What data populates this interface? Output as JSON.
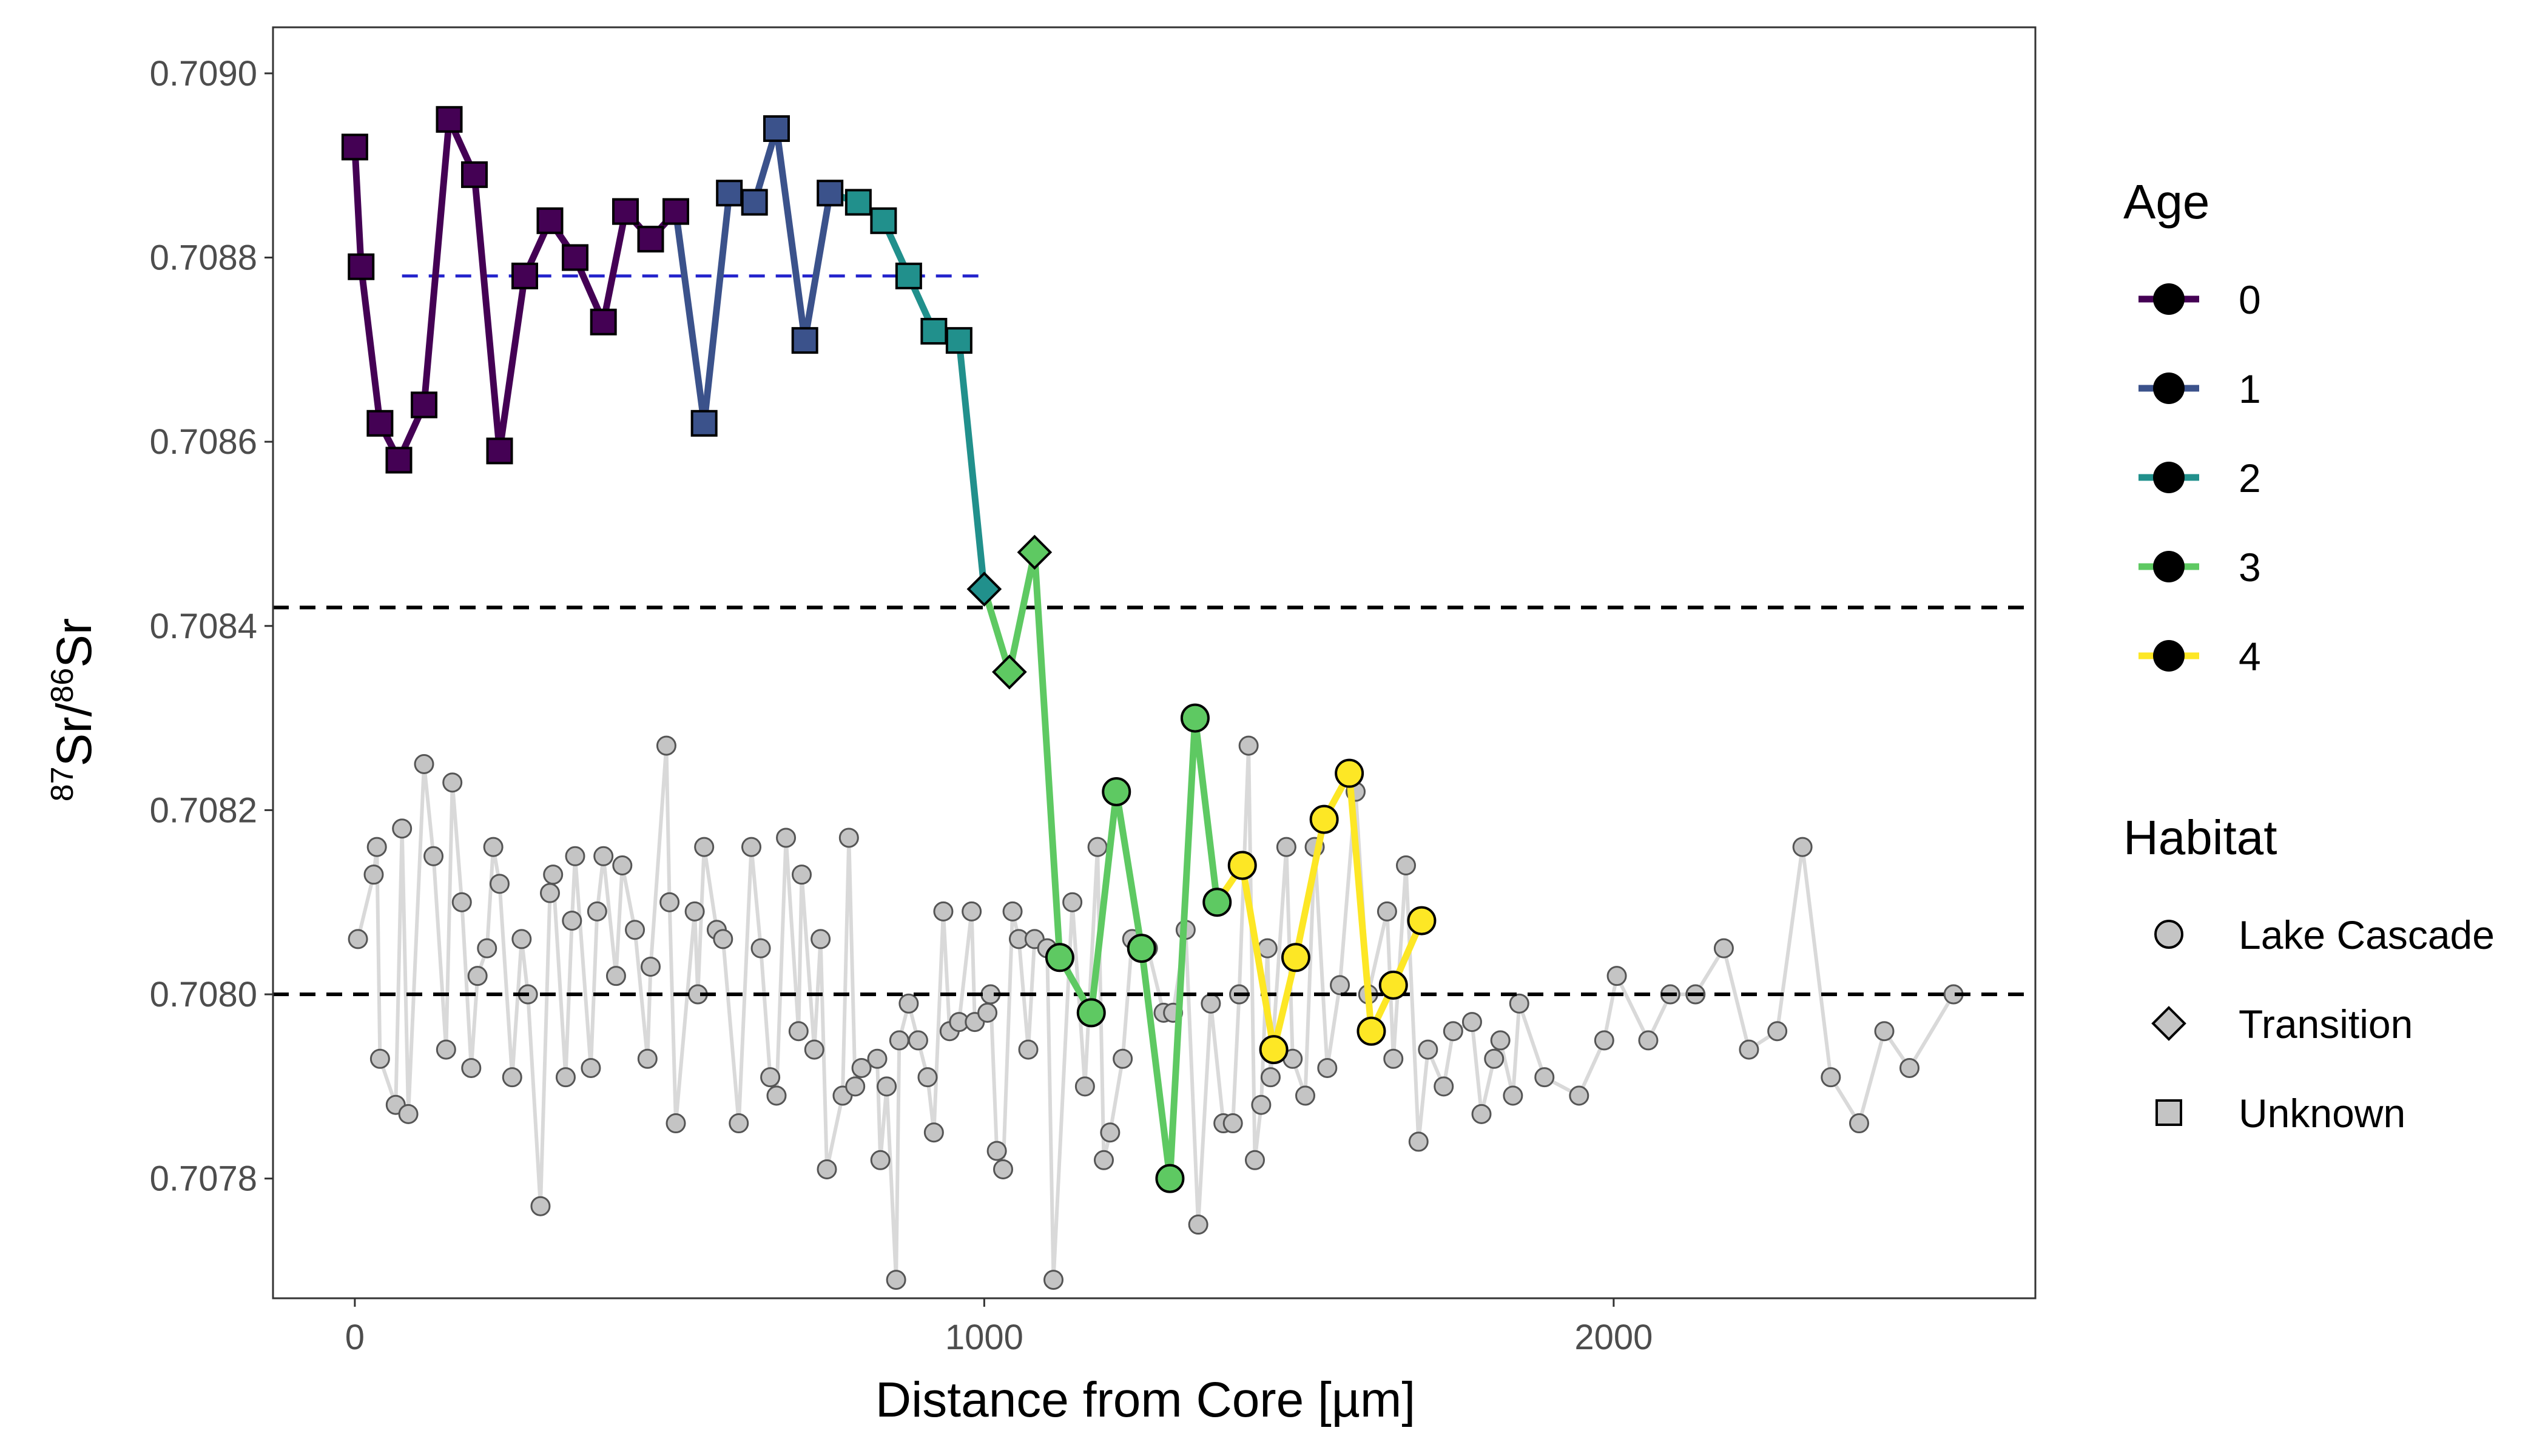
{
  "chart_data": {
    "type": "line",
    "xlabel": "Distance from Core [µm]",
    "ylabel_parts": {
      "sup1": "87",
      "base1": "Sr/",
      "sup2": "86",
      "base2": "Sr"
    },
    "xlim": [
      -130,
      2670
    ],
    "ylim": [
      0.70767,
      0.70905
    ],
    "xticks": [
      0,
      1000,
      2000
    ],
    "xtick_labels": [
      "0",
      "1000",
      "2000"
    ],
    "yticks": [
      0.7078,
      0.708,
      0.7082,
      0.7084,
      0.7086,
      0.7088,
      0.709
    ],
    "ytick_labels": [
      "0.7078",
      "0.7080",
      "0.7082",
      "0.7084",
      "0.7086",
      "0.7088",
      "0.7090"
    ],
    "hlines": [
      0.70842,
      0.708
    ],
    "mean_line": {
      "x": [
        75,
        1000
      ],
      "y": 0.70878,
      "color": "#2222cc"
    },
    "age_colors": {
      "0": "#440154",
      "1": "#3b528b",
      "2": "#21908c",
      "3": "#5ec962",
      "4": "#fde725"
    },
    "legend": {
      "age_title": "Age",
      "age_items": [
        {
          "label": "0",
          "color": "#440154"
        },
        {
          "label": "1",
          "color": "#3b528b"
        },
        {
          "label": "2",
          "color": "#21908c"
        },
        {
          "label": "3",
          "color": "#5ec962"
        },
        {
          "label": "4",
          "color": "#fde725"
        }
      ],
      "habitat_title": "Habitat",
      "habitat_items": [
        {
          "label": "Lake Cascade",
          "shape": "circle"
        },
        {
          "label": "Transition",
          "shape": "diamond"
        },
        {
          "label": "Unknown",
          "shape": "square"
        }
      ]
    },
    "series": [
      {
        "points": [
          [
            0,
            0.70892,
            0,
            "square"
          ],
          [
            10,
            0.70879,
            0,
            "square"
          ],
          [
            40,
            0.70862,
            0,
            "square"
          ],
          [
            70,
            0.70858,
            0,
            "square"
          ],
          [
            110,
            0.70864,
            0,
            "square"
          ],
          [
            150,
            0.70895,
            0,
            "square"
          ],
          [
            190,
            0.70889,
            0,
            "square"
          ],
          [
            230,
            0.70859,
            0,
            "square"
          ],
          [
            270,
            0.70878,
            0,
            "square"
          ],
          [
            310,
            0.70884,
            0,
            "square"
          ],
          [
            350,
            0.7088,
            0,
            "square"
          ],
          [
            395,
            0.70873,
            0,
            "square"
          ],
          [
            430,
            0.70885,
            0,
            "square"
          ],
          [
            470,
            0.70882,
            0,
            "square"
          ],
          [
            510,
            0.70885,
            0,
            "square"
          ],
          [
            555,
            0.70862,
            1,
            "square"
          ],
          [
            595,
            0.70887,
            1,
            "square"
          ],
          [
            635,
            0.70886,
            1,
            "square"
          ],
          [
            670,
            0.70894,
            1,
            "square"
          ],
          [
            715,
            0.70871,
            1,
            "square"
          ],
          [
            755,
            0.70887,
            1,
            "square"
          ],
          [
            800,
            0.70886,
            2,
            "square"
          ],
          [
            840,
            0.70884,
            2,
            "square"
          ],
          [
            880,
            0.70878,
            2,
            "square"
          ],
          [
            920,
            0.70872,
            2,
            "square"
          ],
          [
            960,
            0.70871,
            2,
            "square"
          ],
          [
            1000,
            0.70844,
            2,
            "diamond"
          ],
          [
            1040,
            0.70835,
            3,
            "diamond"
          ],
          [
            1080,
            0.70848,
            3,
            "diamond"
          ],
          [
            1120,
            0.70804,
            3,
            "circle"
          ],
          [
            1170,
            0.70798,
            3,
            "circle"
          ],
          [
            1210,
            0.70822,
            3,
            "circle"
          ],
          [
            1250,
            0.70805,
            3,
            "circle"
          ],
          [
            1295,
            0.7078,
            3,
            "circle"
          ],
          [
            1335,
            0.7083,
            3,
            "circle"
          ],
          [
            1370,
            0.7081,
            3,
            "circle"
          ],
          [
            1410,
            0.70814,
            4,
            "circle"
          ],
          [
            1460,
            0.70794,
            4,
            "circle"
          ],
          [
            1495,
            0.70804,
            4,
            "circle"
          ],
          [
            1540,
            0.70819,
            4,
            "circle"
          ],
          [
            1580,
            0.70824,
            4,
            "circle"
          ],
          [
            1615,
            0.70796,
            4,
            "circle"
          ],
          [
            1650,
            0.70801,
            4,
            "circle"
          ],
          [
            1695,
            0.70808,
            4,
            "circle"
          ]
        ]
      },
      {
        "name": "Lake Cascade",
        "color": "#d9d9d9",
        "points": [
          [
            5,
            0.70806
          ],
          [
            30,
            0.70813
          ],
          [
            35,
            0.70816
          ],
          [
            40,
            0.70793
          ],
          [
            65,
            0.70788
          ],
          [
            75,
            0.70818
          ],
          [
            85,
            0.70787
          ],
          [
            110,
            0.70825
          ],
          [
            125,
            0.70815
          ],
          [
            145,
            0.70794
          ],
          [
            155,
            0.70823
          ],
          [
            170,
            0.7081
          ],
          [
            185,
            0.70792
          ],
          [
            195,
            0.70802
          ],
          [
            210,
            0.70805
          ],
          [
            220,
            0.70816
          ],
          [
            230,
            0.70812
          ],
          [
            250,
            0.70791
          ],
          [
            265,
            0.70806
          ],
          [
            275,
            0.708
          ],
          [
            295,
            0.70777
          ],
          [
            310,
            0.70811
          ],
          [
            315,
            0.70813
          ],
          [
            335,
            0.70791
          ],
          [
            345,
            0.70808
          ],
          [
            350,
            0.70815
          ],
          [
            375,
            0.70792
          ],
          [
            385,
            0.70809
          ],
          [
            395,
            0.70815
          ],
          [
            415,
            0.70802
          ],
          [
            425,
            0.70814
          ],
          [
            445,
            0.70807
          ],
          [
            465,
            0.70793
          ],
          [
            470,
            0.70803
          ],
          [
            495,
            0.70827
          ],
          [
            500,
            0.7081
          ],
          [
            510,
            0.70786
          ],
          [
            540,
            0.70809
          ],
          [
            545,
            0.708
          ],
          [
            555,
            0.70816
          ],
          [
            575,
            0.70807
          ],
          [
            585,
            0.70806
          ],
          [
            610,
            0.70786
          ],
          [
            630,
            0.70816
          ],
          [
            645,
            0.70805
          ],
          [
            660,
            0.70791
          ],
          [
            670,
            0.70789
          ],
          [
            685,
            0.70817
          ],
          [
            705,
            0.70796
          ],
          [
            710,
            0.70813
          ],
          [
            730,
            0.70794
          ],
          [
            740,
            0.70806
          ],
          [
            750,
            0.70781
          ],
          [
            775,
            0.70789
          ],
          [
            785,
            0.70817
          ],
          [
            795,
            0.7079
          ],
          [
            805,
            0.70792
          ],
          [
            830,
            0.70793
          ],
          [
            835,
            0.70782
          ],
          [
            845,
            0.7079
          ],
          [
            860,
            0.70769
          ],
          [
            865,
            0.70795
          ],
          [
            880,
            0.70799
          ],
          [
            895,
            0.70795
          ],
          [
            910,
            0.70791
          ],
          [
            920,
            0.70785
          ],
          [
            935,
            0.70809
          ],
          [
            945,
            0.70796
          ],
          [
            960,
            0.70797
          ],
          [
            980,
            0.70809
          ],
          [
            985,
            0.70797
          ],
          [
            1005,
            0.70798
          ],
          [
            1010,
            0.708
          ],
          [
            1020,
            0.70783
          ],
          [
            1030,
            0.70781
          ],
          [
            1045,
            0.70809
          ],
          [
            1055,
            0.70806
          ],
          [
            1070,
            0.70794
          ],
          [
            1080,
            0.70806
          ],
          [
            1100,
            0.70805
          ],
          [
            1110,
            0.70769
          ],
          [
            1140,
            0.7081
          ],
          [
            1160,
            0.7079
          ],
          [
            1180,
            0.70816
          ],
          [
            1190,
            0.70782
          ],
          [
            1200,
            0.70785
          ],
          [
            1220,
            0.70793
          ],
          [
            1235,
            0.70806
          ],
          [
            1260,
            0.70805
          ],
          [
            1285,
            0.70798
          ],
          [
            1300,
            0.70798
          ],
          [
            1320,
            0.70807
          ],
          [
            1340,
            0.70775
          ],
          [
            1360,
            0.70799
          ],
          [
            1380,
            0.70786
          ],
          [
            1395,
            0.70786
          ],
          [
            1405,
            0.708
          ],
          [
            1420,
            0.70827
          ],
          [
            1430,
            0.70782
          ],
          [
            1440,
            0.70788
          ],
          [
            1450,
            0.70805
          ],
          [
            1455,
            0.70791
          ],
          [
            1480,
            0.70816
          ],
          [
            1490,
            0.70793
          ],
          [
            1510,
            0.70789
          ],
          [
            1525,
            0.70816
          ],
          [
            1545,
            0.70792
          ],
          [
            1565,
            0.70801
          ],
          [
            1590,
            0.70822
          ],
          [
            1610,
            0.708
          ],
          [
            1640,
            0.70809
          ],
          [
            1650,
            0.70793
          ],
          [
            1670,
            0.70814
          ],
          [
            1690,
            0.70784
          ],
          [
            1705,
            0.70794
          ],
          [
            1730,
            0.7079
          ],
          [
            1745,
            0.70796
          ],
          [
            1775,
            0.70797
          ],
          [
            1790,
            0.70787
          ],
          [
            1810,
            0.70793
          ],
          [
            1820,
            0.70795
          ],
          [
            1840,
            0.70789
          ],
          [
            1850,
            0.70799
          ],
          [
            1890,
            0.70791
          ],
          [
            1945,
            0.70789
          ],
          [
            1985,
            0.70795
          ],
          [
            2005,
            0.70802
          ],
          [
            2055,
            0.70795
          ],
          [
            2090,
            0.708
          ],
          [
            2130,
            0.708
          ],
          [
            2175,
            0.70805
          ],
          [
            2215,
            0.70794
          ],
          [
            2260,
            0.70796
          ],
          [
            2300,
            0.70816
          ],
          [
            2345,
            0.70791
          ],
          [
            2390,
            0.70786
          ],
          [
            2430,
            0.70796
          ],
          [
            2470,
            0.70792
          ],
          [
            2540,
            0.708
          ]
        ]
      }
    ]
  }
}
